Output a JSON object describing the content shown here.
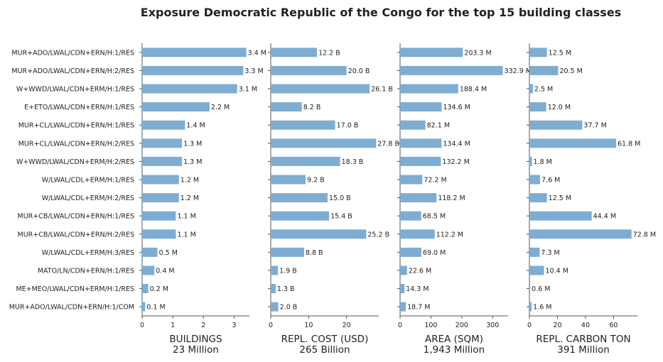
{
  "title": "Exposure Democratic Republic of the Congo for the top 15 building classes",
  "colors": {
    "bar": "#7fadd2",
    "axis": "#555555",
    "text": "#222222"
  },
  "chart_data": {
    "type": "bar",
    "orientation": "horizontal",
    "categories": [
      "MUR+ADO/LWAL/CDN+ERN/H:1/RES",
      "MUR+ADO/LWAL/CDN+ERN/H:2/RES",
      "W+WWD/LWAL/CDN+ERM/H:1/RES",
      "E+ETO/LWAL/CDN+ERN/H:1/RES",
      "MUR+CL/LWAL/CDN+ERN/H:1/RES",
      "MUR+CL/LWAL/CDN+ERN/H:2/RES",
      "W+WWD/LWAL/CDN+ERM/H:2/RES",
      "W/LWAL/CDL+ERM/H:1/RES",
      "W/LWAL/CDL+ERM/H:2/RES",
      "MUR+CB/LWAL/CDN+ERN/H:1/RES",
      "MUR+CB/LWAL/CDN+ERN/H:2/RES",
      "W/LWAL/CDL+ERM/H:3/RES",
      "MATO/LN/CDN+ERN/H:1/RES",
      "ME+MEO/LWAL/CDN+ERM/H:1/RES",
      "MUR+ADO/LWAL/CDN+ERN/H:1/COM"
    ],
    "panels": [
      {
        "xlabel": "BUILDINGS",
        "total": "23 Million",
        "xlim": [
          0,
          3.5
        ],
        "ticks": [
          0,
          1,
          2,
          3
        ],
        "values": [
          3.4,
          3.3,
          3.1,
          2.2,
          1.4,
          1.3,
          1.3,
          1.2,
          1.2,
          1.1,
          1.1,
          0.5,
          0.4,
          0.2,
          0.1
        ],
        "labels": [
          "3.4 M",
          "3.3 M",
          "3.1 M",
          "2.2 M",
          "1.4 M",
          "1.3 M",
          "1.3 M",
          "1.2 M",
          "1.2 M",
          "1.1 M",
          "1.1 M",
          "0.5 M",
          "0.4 M",
          "0.2 M",
          "0.1 M"
        ]
      },
      {
        "xlabel": "REPL. COST (USD)",
        "total": "265 Billion",
        "xlim": [
          0,
          28.5
        ],
        "ticks": [
          0,
          10,
          20
        ],
        "values": [
          12.2,
          20.0,
          26.1,
          8.2,
          17.0,
          27.8,
          18.3,
          9.2,
          15.0,
          15.4,
          25.2,
          8.8,
          1.9,
          1.3,
          2.0
        ],
        "labels": [
          "12.2 B",
          "20.0 B",
          "26.1 B",
          "8.2 B",
          "17.0 B",
          "27.8 B",
          "18.3 B",
          "9.2 B",
          "15.0 B",
          "15.4 B",
          "25.2 B",
          "8.8 B",
          "1.9 B",
          "1.3 B",
          "2.0 B"
        ]
      },
      {
        "xlabel": "AREA (SQM)",
        "total": "1,943 Million",
        "xlim": [
          0,
          350
        ],
        "ticks": [
          0,
          100,
          200,
          300
        ],
        "values": [
          203.3,
          332.9,
          188.4,
          134.6,
          82.1,
          134.4,
          132.2,
          72.2,
          118.2,
          68.5,
          112.2,
          69.0,
          22.6,
          14.3,
          18.7
        ],
        "labels": [
          "203.3 M",
          "332.9 M",
          "188.4 M",
          "134.6 M",
          "82.1 M",
          "134.4 M",
          "132.2 M",
          "72.2 M",
          "118.2 M",
          "68.5 M",
          "112.2 M",
          "69.0 M",
          "22.6 M",
          "14.3 M",
          "18.7 M"
        ]
      },
      {
        "xlabel": "REPL. CARBON TON",
        "total": "391 Million",
        "xlim": [
          0,
          77
        ],
        "ticks": [
          0,
          20,
          40,
          60
        ],
        "values": [
          12.5,
          20.5,
          2.5,
          12.0,
          37.7,
          61.8,
          1.8,
          7.6,
          12.5,
          44.4,
          72.8,
          7.3,
          10.4,
          0.6,
          1.6
        ],
        "labels": [
          "12.5 M",
          "20.5 M",
          "2.5 M",
          "12.0 M",
          "37.7 M",
          "61.8 M",
          "1.8 M",
          "7.6 M",
          "12.5 M",
          "44.4 M",
          "72.8 M",
          "7.3 M",
          "10.4 M",
          "0.6 M",
          "1.6 M"
        ]
      }
    ]
  }
}
